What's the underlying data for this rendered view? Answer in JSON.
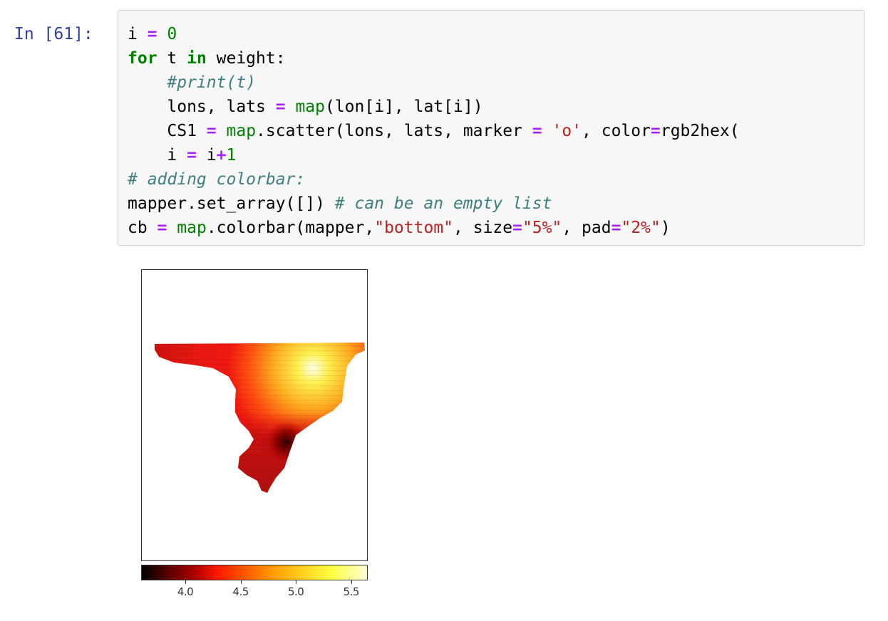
{
  "cell": {
    "prompt": "In [61]:",
    "code_lines": [
      [
        {
          "t": "i ",
          "c": ""
        },
        {
          "t": "=",
          "c": "op"
        },
        {
          "t": " ",
          "c": ""
        },
        {
          "t": "0",
          "c": "num"
        }
      ],
      [
        {
          "t": "for",
          "c": "kw"
        },
        {
          "t": " t ",
          "c": ""
        },
        {
          "t": "in",
          "c": "kw"
        },
        {
          "t": " weight:",
          "c": ""
        }
      ],
      [
        {
          "t": "    ",
          "c": ""
        },
        {
          "t": "#print(t)",
          "c": "com"
        }
      ],
      [
        {
          "t": "    lons, lats ",
          "c": ""
        },
        {
          "t": "=",
          "c": "op"
        },
        {
          "t": " ",
          "c": ""
        },
        {
          "t": "map",
          "c": "bi"
        },
        {
          "t": "(lon[i], lat[i])",
          "c": ""
        }
      ],
      [
        {
          "t": "    CS1 ",
          "c": ""
        },
        {
          "t": "=",
          "c": "op"
        },
        {
          "t": " ",
          "c": ""
        },
        {
          "t": "map",
          "c": "bi"
        },
        {
          "t": ".scatter(lons, lats, marker ",
          "c": ""
        },
        {
          "t": "=",
          "c": "op"
        },
        {
          "t": " ",
          "c": ""
        },
        {
          "t": "'o'",
          "c": "str"
        },
        {
          "t": ", color",
          "c": ""
        },
        {
          "t": "=",
          "c": "op"
        },
        {
          "t": "rgb2hex(",
          "c": ""
        }
      ],
      [
        {
          "t": "    i ",
          "c": ""
        },
        {
          "t": "=",
          "c": "op"
        },
        {
          "t": " i",
          "c": ""
        },
        {
          "t": "+",
          "c": "op"
        },
        {
          "t": "1",
          "c": "num"
        }
      ],
      [
        {
          "t": "# adding colorbar:",
          "c": "com"
        }
      ],
      [
        {
          "t": "mapper.set_array([]) ",
          "c": ""
        },
        {
          "t": "# can be an empty list",
          "c": "com"
        }
      ],
      [
        {
          "t": "cb ",
          "c": ""
        },
        {
          "t": "=",
          "c": "op"
        },
        {
          "t": " ",
          "c": ""
        },
        {
          "t": "map",
          "c": "bi"
        },
        {
          "t": ".colorbar(mapper,",
          "c": ""
        },
        {
          "t": "\"bottom\"",
          "c": "str"
        },
        {
          "t": ", size",
          "c": ""
        },
        {
          "t": "=",
          "c": "op"
        },
        {
          "t": "\"5%\"",
          "c": "str"
        },
        {
          "t": ", pad",
          "c": ""
        },
        {
          "t": "=",
          "c": "op"
        },
        {
          "t": "\"2%\"",
          "c": "str"
        },
        {
          "t": ")",
          "c": ""
        }
      ]
    ]
  },
  "output": {
    "colormap": "hot",
    "colorbar": {
      "ticks": [
        "4.0",
        "4.5",
        "5.0",
        "5.5"
      ],
      "tick_values": [
        4.0,
        4.5,
        5.0,
        5.5
      ],
      "range": [
        3.6,
        5.65
      ]
    }
  },
  "colors": {
    "prompt": "#303f9f",
    "keyword": "#008000",
    "operator": "#aa22ff",
    "string": "#ba2121",
    "comment": "#408080",
    "cell_background": "#f7f7f7"
  }
}
